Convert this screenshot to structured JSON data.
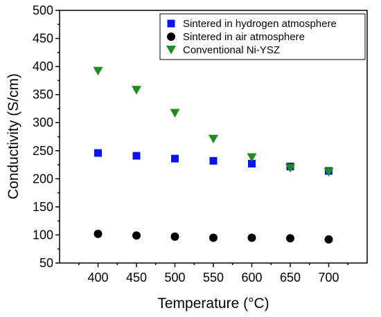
{
  "chart_data": {
    "type": "scatter",
    "title": "",
    "xlabel": "Temperature (°C)",
    "ylabel": "Conductivity (S/cm)",
    "xlim": [
      350,
      750
    ],
    "ylim": [
      50,
      500
    ],
    "xticks": [
      400,
      450,
      500,
      550,
      600,
      650,
      700
    ],
    "yticks": [
      50,
      100,
      150,
      200,
      250,
      300,
      350,
      400,
      450,
      500
    ],
    "grid": false,
    "legend_position": "top-right",
    "series": [
      {
        "name": "Sintered in hydrogen atmosphere",
        "marker": "square",
        "color": "#0a14f0",
        "x": [
          400,
          450,
          500,
          550,
          600,
          650,
          700
        ],
        "y": [
          246,
          241,
          236,
          232,
          227,
          222,
          214
        ]
      },
      {
        "name": "Sintered in air atmosphere",
        "marker": "circle",
        "color": "#000000",
        "x": [
          400,
          450,
          500,
          550,
          600,
          650,
          700
        ],
        "y": [
          102,
          99,
          97,
          95,
          95,
          94,
          92
        ]
      },
      {
        "name": "Conventional Ni-YSZ",
        "marker": "triangle-down",
        "color": "#1e8c1e",
        "x": [
          400,
          450,
          500,
          550,
          600,
          650,
          700
        ],
        "y": [
          392,
          358,
          317,
          271,
          238,
          219,
          212
        ]
      }
    ]
  }
}
